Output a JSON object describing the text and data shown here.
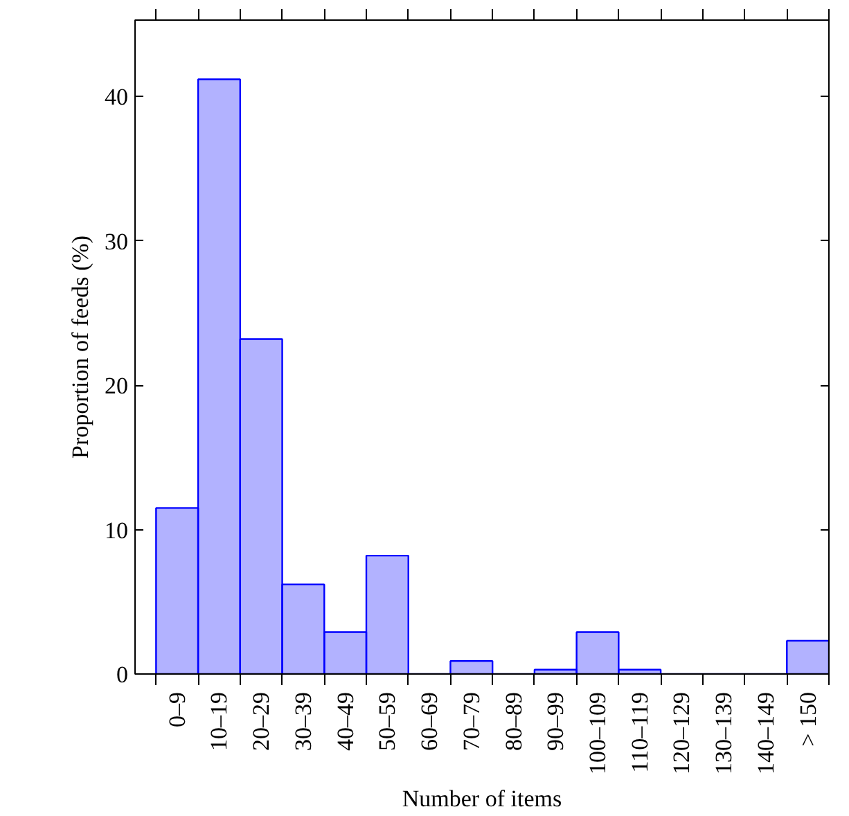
{
  "chart_data": {
    "type": "bar",
    "xlabel": "Number of items",
    "ylabel": "Proportion of feeds (%)",
    "categories": [
      "0–9",
      "10–19",
      "20–29",
      "30–39",
      "40–49",
      "50–59",
      "60–69",
      "70–79",
      "80–89",
      "90–99",
      "100–109",
      "110–119",
      "120–129",
      "130–139",
      "140–149",
      "> 150"
    ],
    "values": [
      11.5,
      41.2,
      23.2,
      6.2,
      2.9,
      8.2,
      0,
      0.9,
      0,
      0.3,
      2.9,
      0.3,
      0,
      0,
      0,
      2.3
    ],
    "color": "#0000ff",
    "ylim": [
      0,
      45.3
    ],
    "yticks": [
      0,
      10,
      20,
      30,
      40
    ]
  }
}
